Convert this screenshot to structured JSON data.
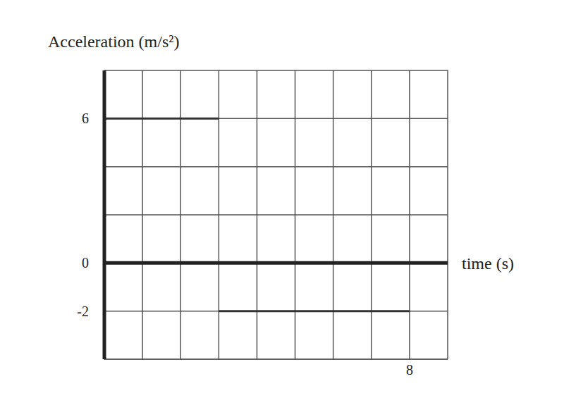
{
  "chart_data": {
    "type": "line",
    "y_label": "Acceleration (m/s²)",
    "x_label": "time (s)",
    "x": [
      0,
      3,
      3,
      3,
      8
    ],
    "values": [
      6,
      6,
      null,
      -2,
      -2
    ],
    "color": "#333333",
    "xlim": [
      0,
      9
    ],
    "ylim": [
      -4,
      8
    ],
    "xticks": [
      8
    ],
    "yticks": [
      -2,
      0,
      6
    ],
    "grid": true,
    "line_style": "solid",
    "marker": "none"
  }
}
